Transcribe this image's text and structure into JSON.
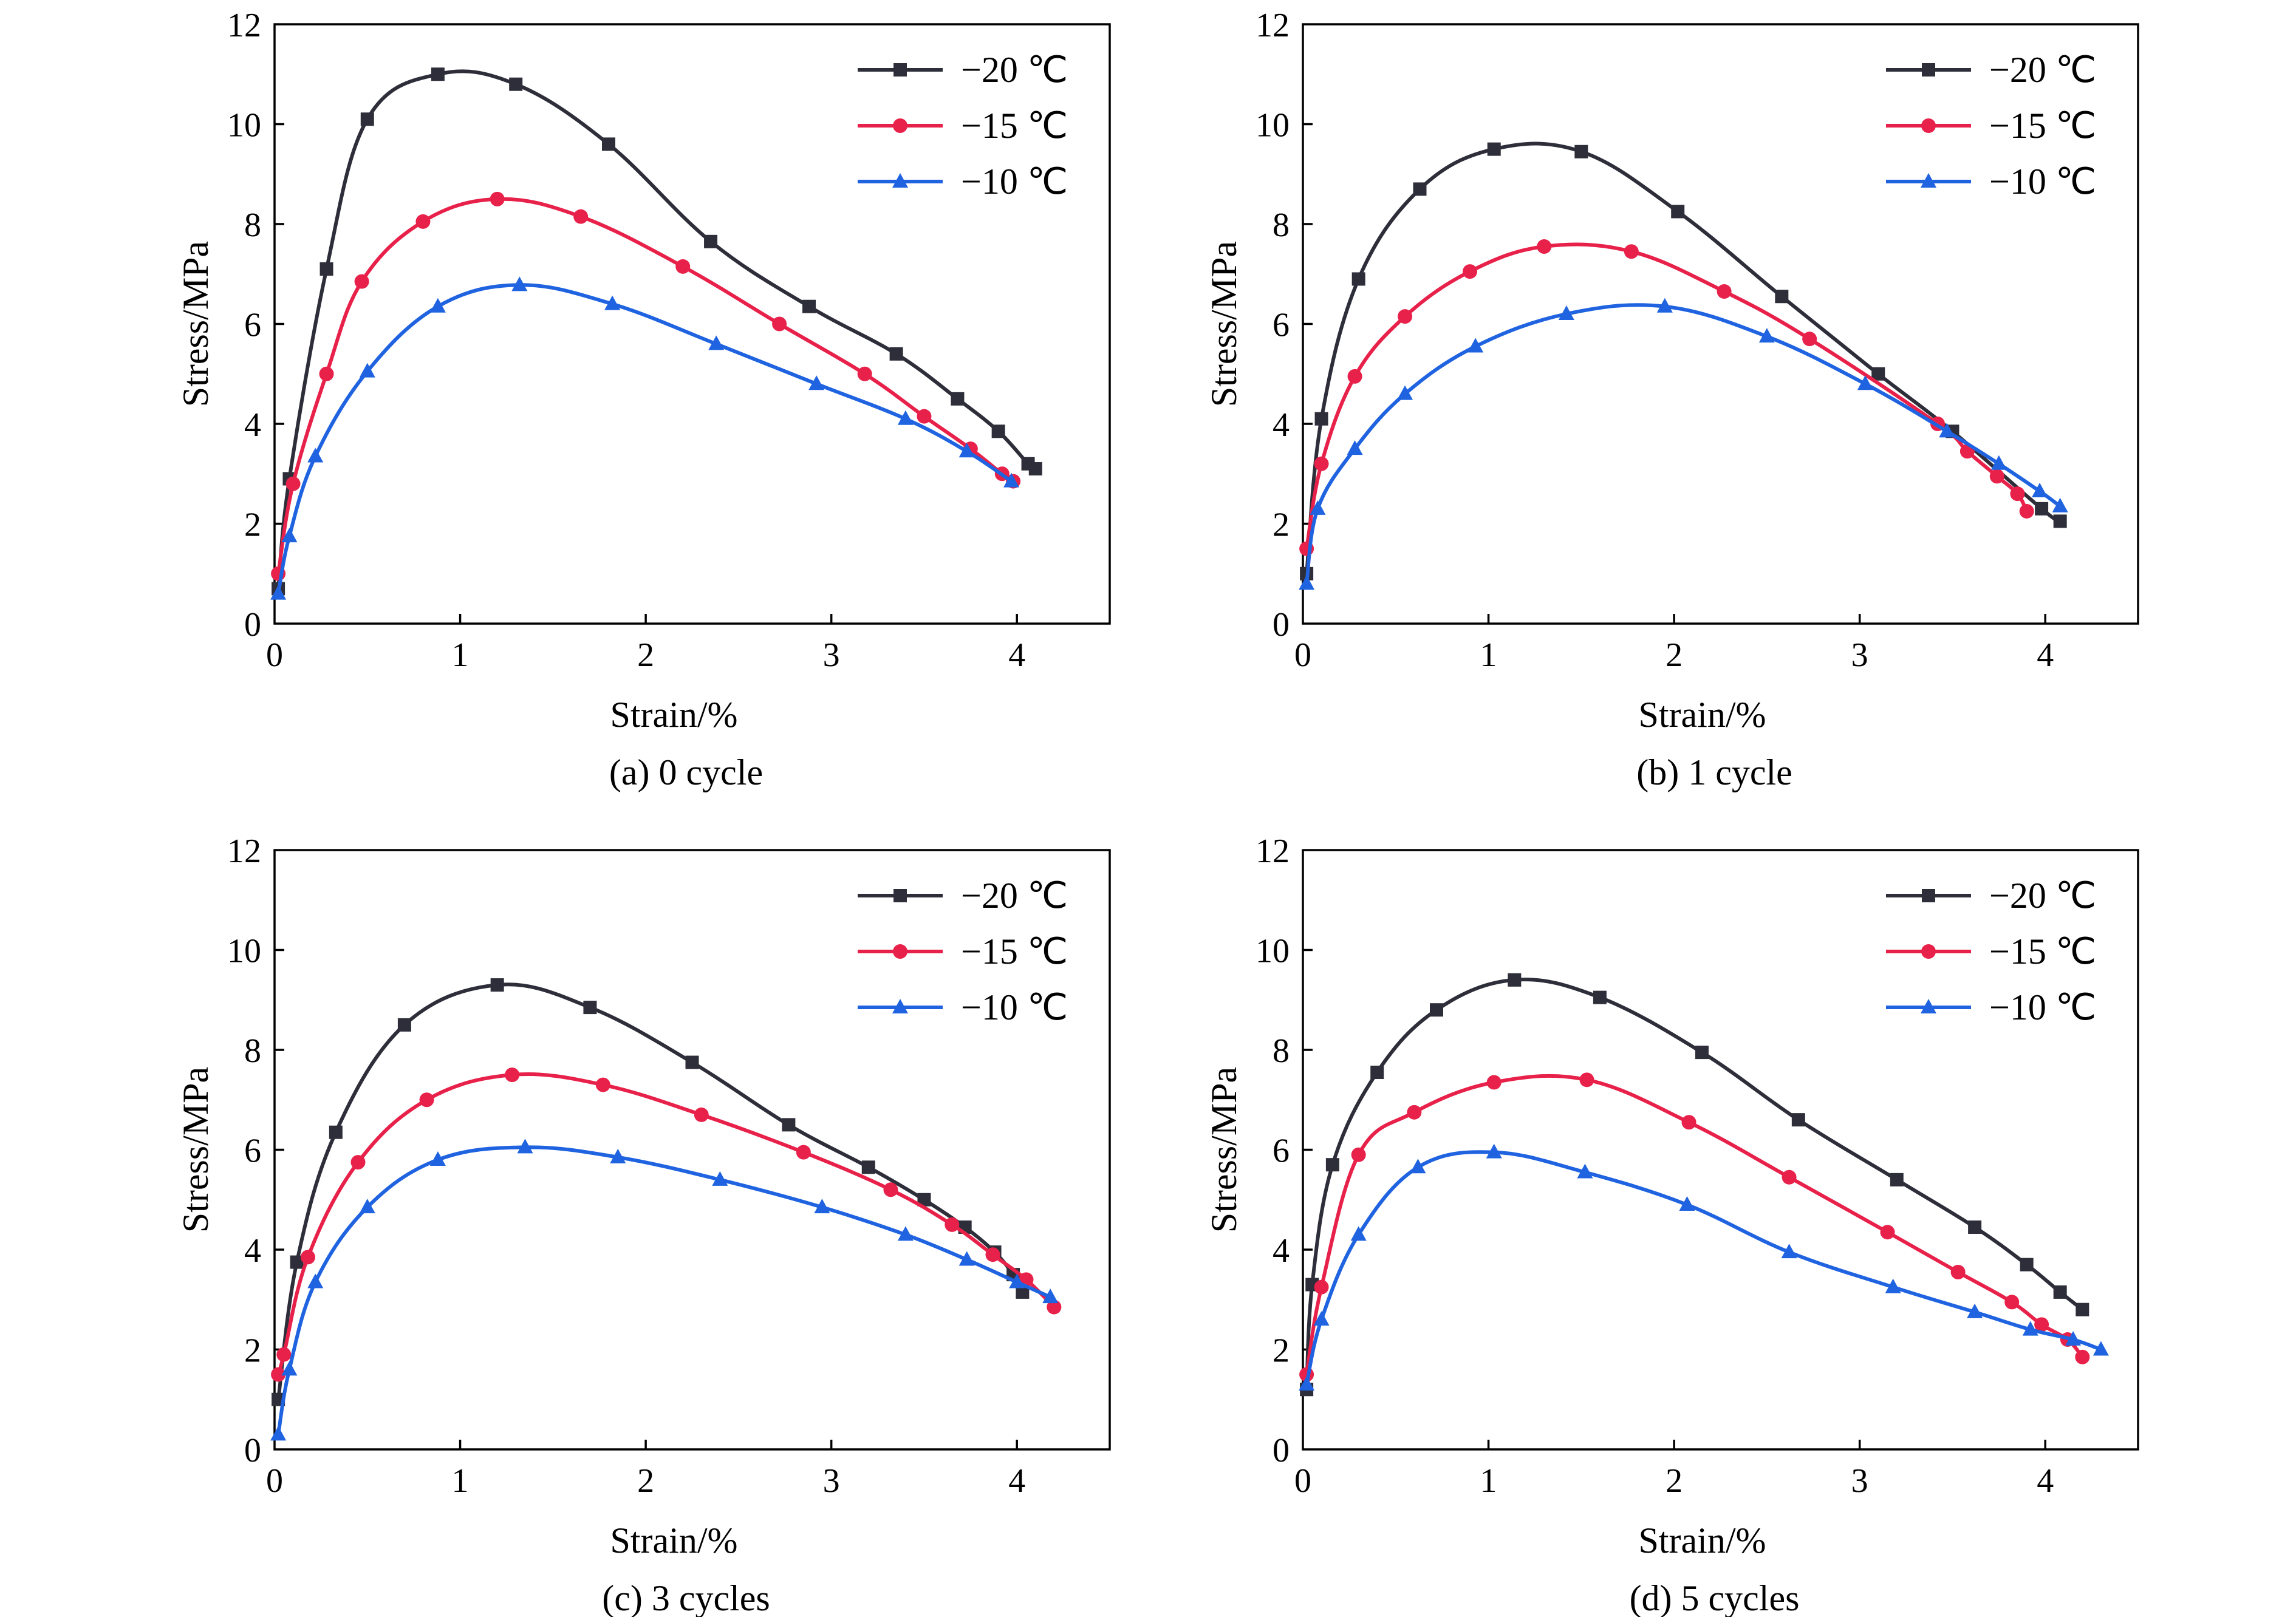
{
  "colors": {
    "-20": "#2e2e3a",
    "-15": "#e8214a",
    "-10": "#1f63e0"
  },
  "chart_data": [
    {
      "type": "line",
      "caption": "(a) 0 cycle",
      "xlabel": "Strain/%",
      "ylabel": "Stress/MPa",
      "xlim": [
        0,
        4.5
      ],
      "ylim": [
        0,
        12
      ],
      "xticks": [
        0,
        1,
        2,
        3,
        4
      ],
      "yticks": [
        0,
        2,
        4,
        6,
        8,
        10,
        12
      ],
      "legend_position": "top-right",
      "series": [
        {
          "name": "−20 ℃",
          "color_key": "-20",
          "marker": "square",
          "x": [
            0.02,
            0.08,
            0.28,
            0.5,
            0.88,
            1.3,
            1.8,
            2.35,
            2.88,
            3.35,
            3.68,
            3.9,
            4.06,
            4.1
          ],
          "y": [
            0.7,
            2.9,
            7.1,
            10.1,
            11.0,
            10.8,
            9.6,
            7.65,
            6.35,
            5.4,
            4.5,
            3.85,
            3.2,
            3.1
          ]
        },
        {
          "name": "−15 ℃",
          "color_key": "-15",
          "marker": "circle",
          "x": [
            0.02,
            0.1,
            0.28,
            0.47,
            0.8,
            1.2,
            1.65,
            2.2,
            2.72,
            3.18,
            3.5,
            3.75,
            3.92,
            3.98
          ],
          "y": [
            1.0,
            2.8,
            5.0,
            6.85,
            8.05,
            8.5,
            8.15,
            7.15,
            6.0,
            5.0,
            4.15,
            3.5,
            3.0,
            2.85
          ]
        },
        {
          "name": "−10 ℃",
          "color_key": "-10",
          "marker": "triangle",
          "x": [
            0.02,
            0.08,
            0.22,
            0.5,
            0.88,
            1.32,
            1.82,
            2.38,
            2.92,
            3.4,
            3.73,
            3.97
          ],
          "y": [
            0.6,
            1.75,
            3.35,
            5.05,
            6.35,
            6.78,
            6.4,
            5.6,
            4.8,
            4.1,
            3.45,
            2.85
          ]
        }
      ]
    },
    {
      "type": "line",
      "caption": "(b) 1 cycle",
      "xlabel": "Strain/%",
      "ylabel": "Stress/MPa",
      "xlim": [
        0,
        4.5
      ],
      "ylim": [
        0,
        12
      ],
      "xticks": [
        0,
        1,
        2,
        3,
        4
      ],
      "yticks": [
        0,
        2,
        4,
        6,
        8,
        10,
        12
      ],
      "legend_position": "top-right",
      "series": [
        {
          "name": "−20 ℃",
          "color_key": "-20",
          "marker": "square",
          "x": [
            0.02,
            0.1,
            0.3,
            0.63,
            1.03,
            1.5,
            2.02,
            2.58,
            3.1,
            3.5,
            3.98,
            4.08
          ],
          "y": [
            1.0,
            4.1,
            6.9,
            8.7,
            9.5,
            9.45,
            8.25,
            6.55,
            5.0,
            3.85,
            2.3,
            2.05
          ]
        },
        {
          "name": "−15 ℃",
          "color_key": "-15",
          "marker": "circle",
          "x": [
            0.02,
            0.1,
            0.28,
            0.55,
            0.9,
            1.3,
            1.77,
            2.27,
            2.73,
            3.42,
            3.58,
            3.74,
            3.85,
            3.9
          ],
          "y": [
            1.5,
            3.2,
            4.95,
            6.15,
            7.05,
            7.55,
            7.45,
            6.65,
            5.7,
            4.0,
            3.45,
            2.95,
            2.6,
            2.25
          ]
        },
        {
          "name": "−10 ℃",
          "color_key": "-10",
          "marker": "triangle",
          "x": [
            0.02,
            0.08,
            0.28,
            0.55,
            0.93,
            1.42,
            1.95,
            2.5,
            3.03,
            3.47,
            3.75,
            3.97,
            4.08
          ],
          "y": [
            0.8,
            2.3,
            3.5,
            4.6,
            5.55,
            6.2,
            6.35,
            5.75,
            4.8,
            3.85,
            3.2,
            2.65,
            2.35
          ]
        }
      ]
    },
    {
      "type": "line",
      "caption": "(c) 3 cycles",
      "xlabel": "Strain/%",
      "ylabel": "Stress/MPa",
      "xlim": [
        0,
        4.5
      ],
      "ylim": [
        0,
        12
      ],
      "xticks": [
        0,
        1,
        2,
        3,
        4
      ],
      "yticks": [
        0,
        2,
        4,
        6,
        8,
        10,
        12
      ],
      "legend_position": "top-right",
      "series": [
        {
          "name": "−20 ℃",
          "color_key": "-20",
          "marker": "square",
          "x": [
            0.02,
            0.12,
            0.33,
            0.7,
            1.2,
            1.7,
            2.25,
            2.77,
            3.2,
            3.5,
            3.72,
            3.88,
            3.98,
            4.03
          ],
          "y": [
            1.0,
            3.75,
            6.35,
            8.5,
            9.3,
            8.85,
            7.75,
            6.5,
            5.65,
            5.0,
            4.45,
            3.95,
            3.5,
            3.15
          ]
        },
        {
          "name": "−15 ℃",
          "color_key": "-15",
          "marker": "circle",
          "x": [
            0.02,
            0.05,
            0.18,
            0.45,
            0.82,
            1.28,
            1.77,
            2.3,
            2.85,
            3.32,
            3.65,
            3.87,
            4.05,
            4.2
          ],
          "y": [
            1.5,
            1.9,
            3.85,
            5.75,
            7.0,
            7.5,
            7.3,
            6.7,
            5.95,
            5.2,
            4.5,
            3.9,
            3.4,
            2.85
          ]
        },
        {
          "name": "−10 ℃",
          "color_key": "-10",
          "marker": "triangle",
          "x": [
            0.02,
            0.08,
            0.22,
            0.5,
            0.88,
            1.35,
            1.85,
            2.4,
            2.95,
            3.4,
            3.73,
            4.0,
            4.18
          ],
          "y": [
            0.3,
            1.6,
            3.35,
            4.85,
            5.8,
            6.05,
            5.85,
            5.4,
            4.85,
            4.3,
            3.8,
            3.35,
            3.05
          ]
        }
      ]
    },
    {
      "type": "line",
      "caption": "(d) 5 cycles",
      "xlabel": "Strain/%",
      "ylabel": "Stress/MPa",
      "xlim": [
        0,
        4.5
      ],
      "ylim": [
        0,
        12
      ],
      "xticks": [
        0,
        1,
        2,
        3,
        4
      ],
      "yticks": [
        0,
        2,
        4,
        6,
        8,
        10,
        12
      ],
      "legend_position": "top-right",
      "series": [
        {
          "name": "−20 ℃",
          "color_key": "-20",
          "marker": "square",
          "x": [
            0.02,
            0.05,
            0.16,
            0.4,
            0.72,
            1.14,
            1.6,
            2.15,
            2.67,
            3.2,
            3.62,
            3.9,
            4.08,
            4.2
          ],
          "y": [
            1.2,
            3.3,
            5.7,
            7.55,
            8.8,
            9.4,
            9.05,
            7.95,
            6.6,
            5.4,
            4.45,
            3.7,
            3.15,
            2.8
          ]
        },
        {
          "name": "−15 ℃",
          "color_key": "-15",
          "marker": "circle",
          "x": [
            0.02,
            0.1,
            0.3,
            0.6,
            1.03,
            1.53,
            2.08,
            2.62,
            3.15,
            3.53,
            3.82,
            3.98,
            4.12,
            4.2
          ],
          "y": [
            1.5,
            3.25,
            5.9,
            6.75,
            7.35,
            7.4,
            6.55,
            5.45,
            4.35,
            3.55,
            2.95,
            2.5,
            2.2,
            1.85
          ]
        },
        {
          "name": "−10 ℃",
          "color_key": "-10",
          "marker": "triangle",
          "x": [
            0.02,
            0.1,
            0.3,
            0.62,
            1.03,
            1.52,
            2.07,
            2.62,
            3.18,
            3.62,
            3.92,
            4.15,
            4.3
          ],
          "y": [
            1.3,
            2.6,
            4.3,
            5.65,
            5.95,
            5.55,
            4.9,
            3.95,
            3.25,
            2.75,
            2.4,
            2.2,
            2.0
          ]
        }
      ]
    }
  ]
}
